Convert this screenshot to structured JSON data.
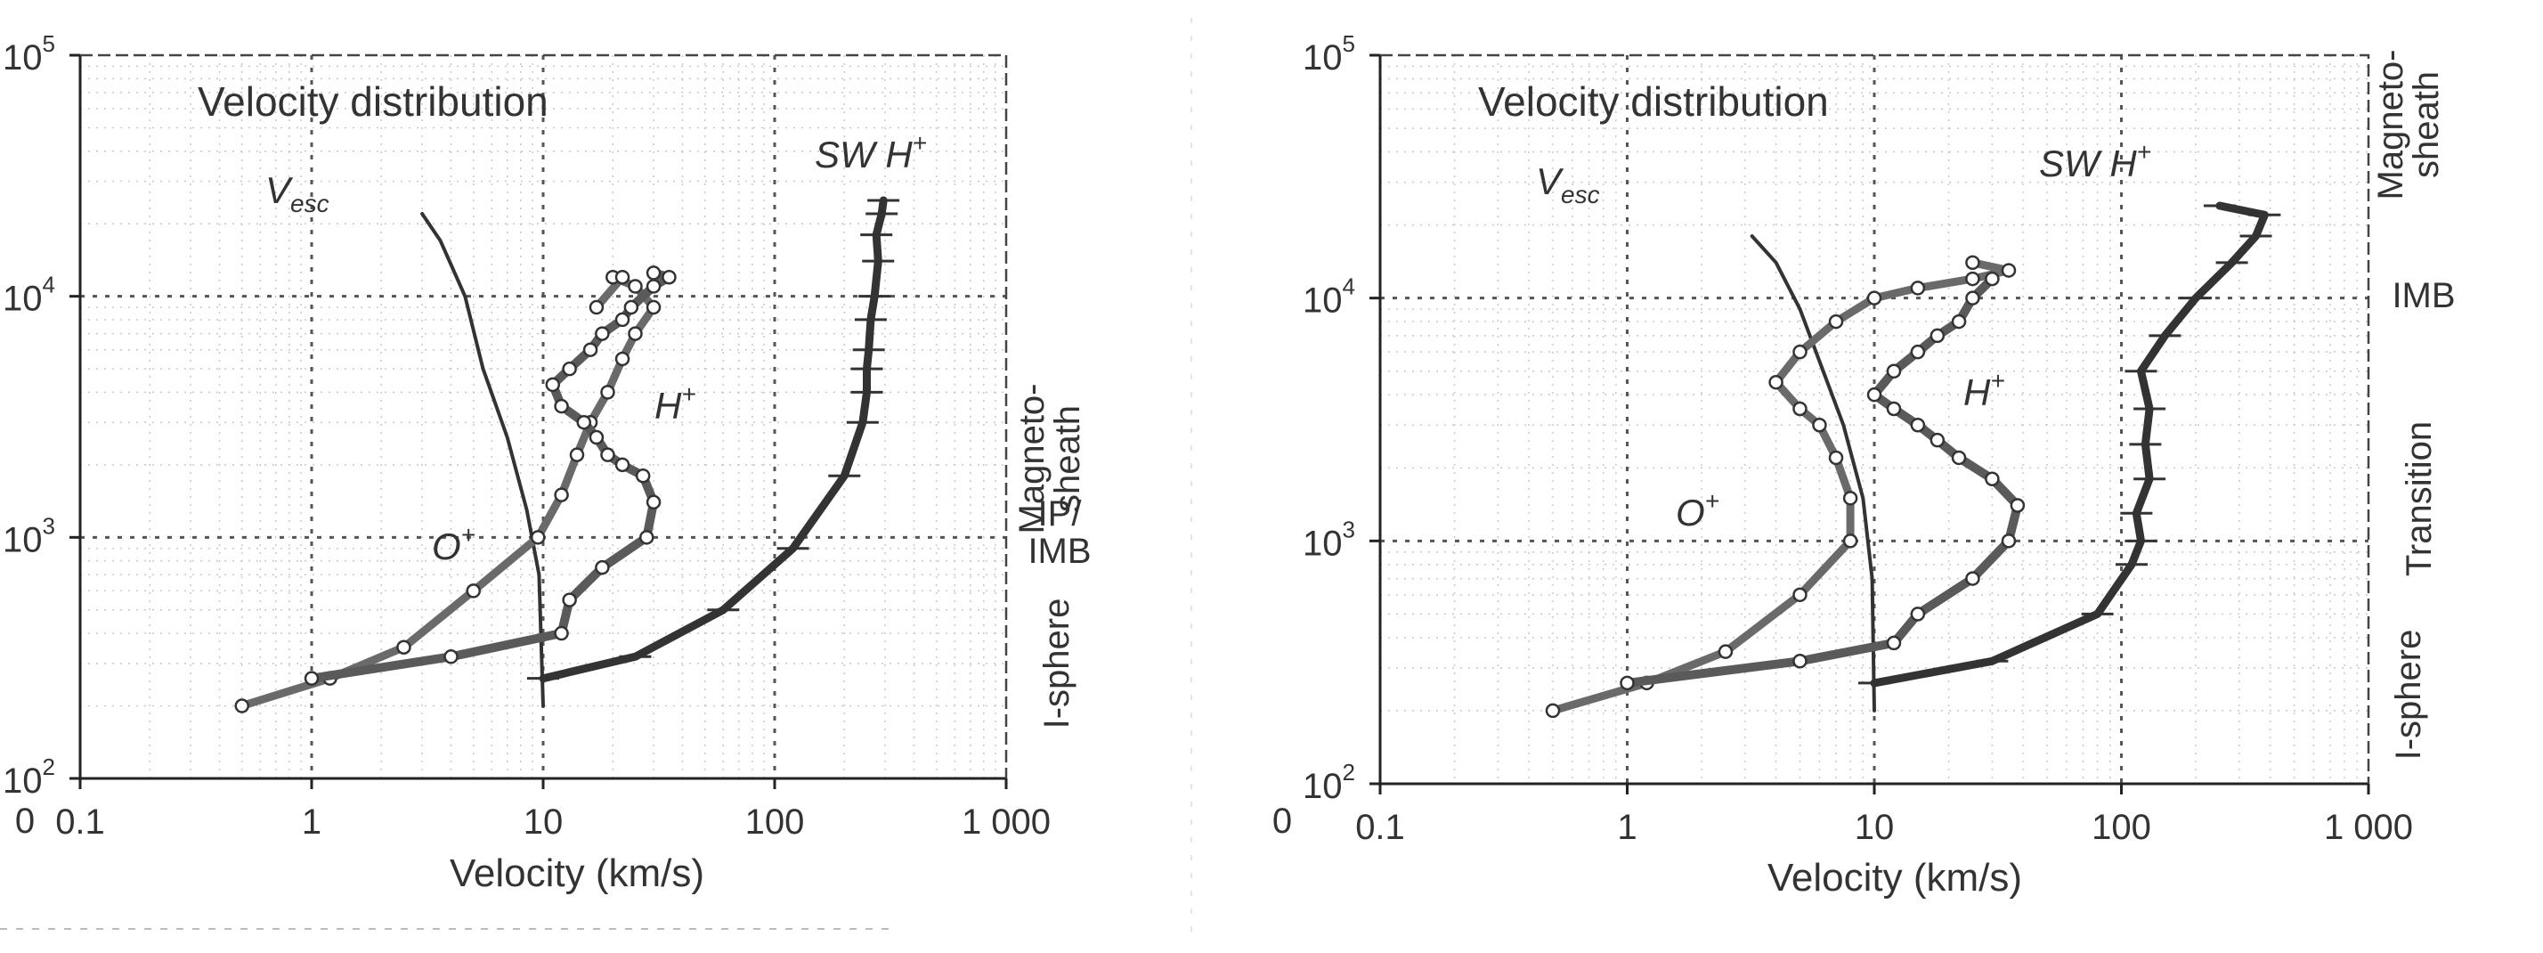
{
  "chart_data": [
    {
      "type": "line",
      "title": "Velocity distribution",
      "xlabel": "Velocity (km/s)",
      "ylabel": "",
      "xscale": "log",
      "yscale": "log",
      "xlim": [
        0.1,
        1000
      ],
      "ylim": [
        100,
        100000
      ],
      "x_origin_label": "0",
      "x_ticks": [
        0.1,
        1,
        10,
        100,
        1000
      ],
      "x_tick_labels": [
        "0.1",
        "1",
        "10",
        "100",
        "1 000"
      ],
      "y_ticks": [
        100,
        1000,
        10000,
        100000
      ],
      "y_tick_labels": [
        {
          "base": "10",
          "exp": "2"
        },
        {
          "base": "10",
          "exp": "3"
        },
        {
          "base": "10",
          "exp": "4"
        },
        {
          "base": "10",
          "exp": "5"
        }
      ],
      "region_labels": [
        "Magneto-",
        "sheath",
        "IP/",
        "IMB",
        "I-sphere"
      ],
      "series": [
        {
          "name": "Vesc",
          "label": "V",
          "label_sub": "esc",
          "color": "#333333",
          "x": [
            10,
            9.6,
            8.5,
            7,
            5.5,
            4.6,
            3.6,
            3.0
          ],
          "y": [
            200,
            700,
            1300,
            2600,
            5000,
            10000,
            17000,
            22000
          ]
        },
        {
          "name": "O+",
          "label": "O",
          "label_sup": "+",
          "color": "#6a6a6a",
          "x": [
            0.5,
            1.2,
            2.5,
            5,
            9.5,
            12,
            14,
            16,
            19,
            22,
            25,
            30,
            25,
            20,
            22,
            17
          ],
          "y": [
            200,
            260,
            350,
            600,
            1000,
            1500,
            2200,
            3000,
            4000,
            5500,
            7000,
            9000,
            11000,
            12000,
            12000,
            9000
          ]
        },
        {
          "name": "H+",
          "label": "H",
          "label_sup": "+",
          "color": "#5a5a5a",
          "x": [
            1,
            4,
            12,
            13,
            18,
            28,
            30,
            27,
            22,
            19,
            17,
            15,
            12,
            11,
            13,
            16,
            18,
            22,
            24,
            30,
            35,
            30
          ],
          "y": [
            260,
            320,
            400,
            550,
            750,
            1000,
            1400,
            1800,
            2000,
            2200,
            2600,
            3000,
            3500,
            4300,
            5000,
            6000,
            7000,
            8000,
            9000,
            11000,
            12000,
            12500
          ]
        },
        {
          "name": "SW H+",
          "label": "SW H",
          "label_sup": "+",
          "color": "#333333",
          "x": [
            10,
            25,
            60,
            120,
            200,
            240,
            250,
            250,
            255,
            260,
            270,
            280,
            275,
            290,
            295
          ],
          "y": [
            260,
            320,
            500,
            900,
            1800,
            3000,
            4000,
            5000,
            6000,
            8000,
            10000,
            14000,
            18000,
            22000,
            25000
          ]
        }
      ]
    },
    {
      "type": "line",
      "title": "Velocity distribution",
      "xlabel": "Velocity (km/s)",
      "ylabel": "",
      "xscale": "log",
      "yscale": "log",
      "xlim": [
        0.1,
        1000
      ],
      "ylim": [
        100,
        100000
      ],
      "x_origin_label": "0",
      "x_ticks": [
        0.1,
        1,
        10,
        100,
        1000
      ],
      "x_tick_labels": [
        "0.1",
        "1",
        "10",
        "100",
        "1 000"
      ],
      "y_ticks": [
        100,
        1000,
        10000,
        100000
      ],
      "y_tick_labels": [
        {
          "base": "10",
          "exp": "2"
        },
        {
          "base": "10",
          "exp": "3"
        },
        {
          "base": "10",
          "exp": "4"
        },
        {
          "base": "10",
          "exp": "5"
        }
      ],
      "region_labels": [
        "Magneto-",
        "sheath",
        "IMB",
        "Transition",
        "I-sphere"
      ],
      "series": [
        {
          "name": "Vesc",
          "label": "V",
          "label_sub": "esc",
          "color": "#333333",
          "x": [
            10,
            9.8,
            9,
            7.5,
            6,
            5,
            4,
            3.2
          ],
          "y": [
            200,
            700,
            1500,
            3000,
            5500,
            9000,
            14000,
            18000
          ]
        },
        {
          "name": "O+",
          "label": "O",
          "label_sup": "+",
          "color": "#6a6a6a",
          "x": [
            0.5,
            1.2,
            2.5,
            5,
            8,
            8,
            7,
            6,
            5,
            4,
            5,
            7,
            10,
            15,
            25,
            35,
            25
          ],
          "y": [
            200,
            260,
            350,
            600,
            1000,
            1500,
            2200,
            3000,
            3500,
            4500,
            6000,
            8000,
            10000,
            11000,
            12000,
            13000,
            14000
          ]
        },
        {
          "name": "H+",
          "label": "H",
          "label_sup": "+",
          "color": "#5a5a5a",
          "x": [
            1,
            5,
            12,
            15,
            25,
            35,
            38,
            30,
            22,
            18,
            15,
            12,
            10,
            12,
            15,
            18,
            22,
            25,
            30
          ],
          "y": [
            260,
            320,
            380,
            500,
            700,
            1000,
            1400,
            1800,
            2200,
            2600,
            3000,
            3500,
            4000,
            5000,
            6000,
            7000,
            8000,
            10000,
            12000
          ]
        },
        {
          "name": "SW H+",
          "label": "SW H",
          "label_sup": "+",
          "color": "#333333",
          "x": [
            10,
            30,
            80,
            110,
            120,
            115,
            130,
            125,
            130,
            120,
            150,
            200,
            280,
            350,
            380,
            250
          ],
          "y": [
            260,
            320,
            500,
            800,
            1000,
            1300,
            1800,
            2500,
            3500,
            5000,
            7000,
            10000,
            14000,
            18000,
            22000,
            24000
          ]
        }
      ]
    }
  ]
}
